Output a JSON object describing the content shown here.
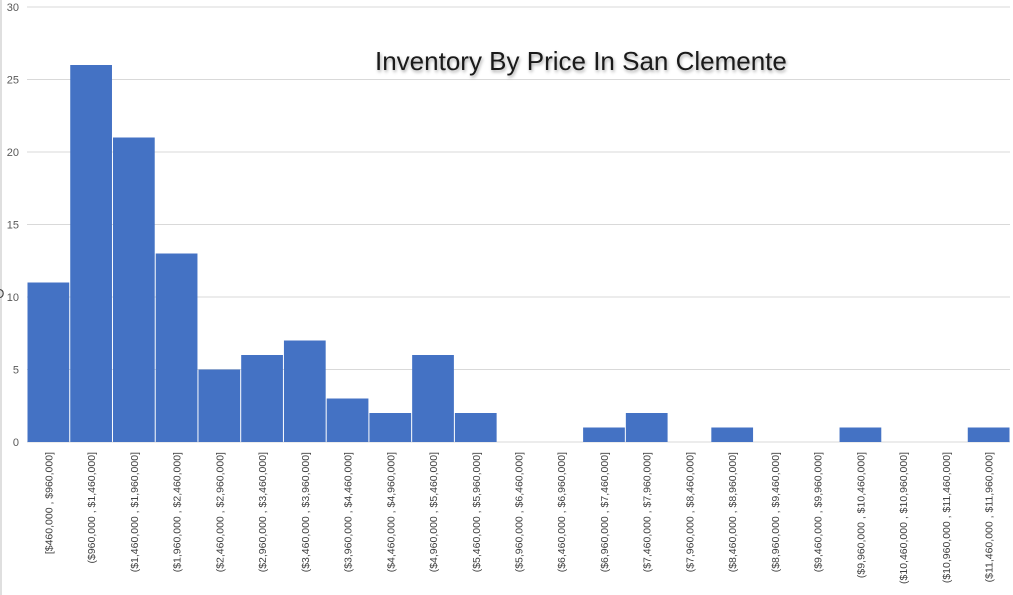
{
  "chart_data": {
    "type": "bar",
    "title": "Inventory By Price In San Clemente",
    "ylabel_fragment": "D",
    "ylim": [
      0,
      30
    ],
    "yticks": [
      0,
      5,
      10,
      15,
      20,
      25,
      30
    ],
    "grid": true,
    "bar_color": "#4472c4",
    "categories": [
      "[$460,000 , $960,000]",
      "($960,000 , $1,460,000]",
      "($1,460,000 , $1,960,000]",
      "($1,960,000 , $2,460,000]",
      "($2,460,000 , $2,960,000]",
      "($2,960,000 , $3,460,000]",
      "($3,460,000 , $3,960,000]",
      "($3,960,000 , $4,460,000]",
      "($4,460,000 , $4,960,000]",
      "($4,960,000 , $5,460,000]",
      "($5,460,000 , $5,960,000]",
      "($5,960,000 , $6,460,000]",
      "($6,460,000 , $6,960,000]",
      "($6,960,000 , $7,460,000]",
      "($7,460,000 , $7,960,000]",
      "($7,960,000 , $8,460,000]",
      "($8,460,000 , $8,960,000]",
      "($8,960,000 , $9,460,000]",
      "($9,460,000 , $9,960,000]",
      "($9,960,000 , $10,460,000]",
      "($10,460,000 , $10,960,000]",
      "($10,960,000 , $11,460,000]",
      "($11,460,000 , $11,960,000]"
    ],
    "values": [
      11,
      26,
      21,
      13,
      5,
      6,
      7,
      3,
      2,
      6,
      2,
      0,
      0,
      1,
      2,
      0,
      1,
      0,
      0,
      1,
      0,
      0,
      1
    ]
  }
}
